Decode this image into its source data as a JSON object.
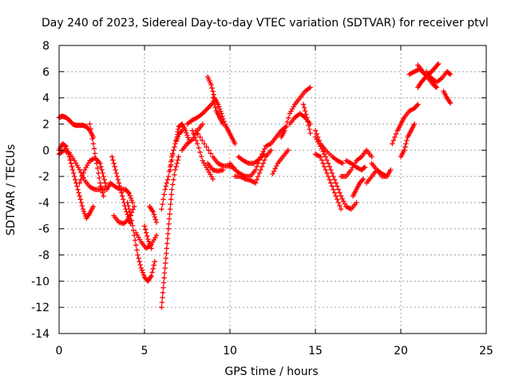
{
  "chart_data": {
    "type": "scatter",
    "title": "Day 240 of 2023, Sidereal Day-to-day VTEC variation (SDTVAR) for receiver ptvl",
    "xlabel": "GPS time / hours",
    "ylabel": "SDTVAR / TECUs",
    "xlim": [
      0,
      25
    ],
    "ylim": [
      -14,
      8
    ],
    "x_ticks": [
      0,
      5,
      10,
      15,
      20,
      25
    ],
    "y_ticks": [
      -14,
      -12,
      -10,
      -8,
      -6,
      -4,
      -2,
      0,
      2,
      4,
      6,
      8
    ],
    "grid": true,
    "marker": "plus",
    "color": "#ff0000",
    "series": [
      {
        "x": [
          0.0,
          0.2,
          0.4,
          0.6,
          0.8,
          1.0,
          1.2,
          1.4,
          1.6,
          1.8,
          2.0
        ],
        "y": [
          2.5,
          2.6,
          2.5,
          2.3,
          2.0,
          1.9,
          1.9,
          1.9,
          1.8,
          1.5,
          1.0
        ]
      },
      {
        "x": [
          1.8,
          2.0,
          2.2,
          2.4,
          2.6
        ],
        "y": [
          2.0,
          0.5,
          -1.0,
          -2.5,
          -3.5
        ]
      },
      {
        "x": [
          0.0,
          0.2,
          0.4,
          0.6,
          0.8,
          1.0,
          1.2,
          1.4,
          1.6,
          1.8,
          2.0
        ],
        "y": [
          0.0,
          0.5,
          0.3,
          -0.5,
          -1.5,
          -2.5,
          -3.5,
          -4.5,
          -5.2,
          -4.8,
          -4.3
        ]
      },
      {
        "x": [
          0.0,
          0.3,
          0.6,
          0.9,
          1.2,
          1.5,
          1.8,
          2.1,
          2.4,
          2.7
        ],
        "y": [
          -0.3,
          0.0,
          -0.2,
          -0.8,
          -1.5,
          -2.3,
          -2.8,
          -3.0,
          -3.0,
          -3.0
        ]
      },
      {
        "x": [
          1.2,
          1.5,
          1.8,
          2.1,
          2.4,
          2.6,
          2.8
        ],
        "y": [
          -2.5,
          -1.5,
          -0.8,
          -0.6,
          -1.0,
          -2.0,
          -3.0
        ]
      },
      {
        "x": [
          2.8,
          3.0,
          3.3,
          3.6,
          3.9,
          4.1,
          4.3
        ],
        "y": [
          -3.0,
          -2.5,
          -2.8,
          -3.0,
          -3.0,
          -3.3,
          -4.0
        ]
      },
      {
        "x": [
          3.1,
          3.3,
          3.5,
          3.7,
          3.9,
          4.1,
          4.2
        ],
        "y": [
          -0.5,
          -1.5,
          -2.5,
          -3.5,
          -4.5,
          -5.3,
          -5.6
        ]
      },
      {
        "x": [
          3.2,
          3.5,
          3.8,
          4.1,
          4.4
        ],
        "y": [
          -5.0,
          -5.5,
          -5.6,
          -5.2,
          -4.3
        ]
      },
      {
        "x": [
          4.0,
          4.2,
          4.4,
          4.6,
          4.8,
          5.0,
          5.2,
          5.4,
          5.6
        ],
        "y": [
          -4.0,
          -5.0,
          -6.5,
          -8.0,
          -9.0,
          -9.7,
          -10.0,
          -9.6,
          -8.5
        ]
      },
      {
        "x": [
          4.5,
          4.8,
          5.1,
          5.4,
          5.7
        ],
        "y": [
          -6.3,
          -7.0,
          -7.5,
          -7.2,
          -6.5
        ]
      },
      {
        "x": [
          5.3,
          5.5,
          5.7
        ],
        "y": [
          -4.3,
          -4.7,
          -5.5
        ]
      },
      {
        "x": [
          5.0,
          5.2,
          5.4
        ],
        "y": [
          -5.8,
          -6.8,
          -7.5
        ]
      },
      {
        "x": [
          6.0,
          6.1,
          6.2,
          6.3,
          6.4,
          6.5,
          6.6,
          6.8,
          7.0
        ],
        "y": [
          -12.0,
          -10.5,
          -9.0,
          -7.5,
          -6.0,
          -4.5,
          -3.0,
          -1.5,
          -0.5
        ]
      },
      {
        "x": [
          6.0,
          6.2,
          6.4,
          6.6,
          6.8,
          7.0,
          7.2
        ],
        "y": [
          -4.5,
          -3.0,
          -2.0,
          -0.5,
          0.5,
          1.2,
          1.5
        ]
      },
      {
        "x": [
          6.5,
          6.7,
          6.9,
          7.0,
          7.2,
          7.4,
          7.6
        ],
        "y": [
          -1.5,
          0.0,
          1.0,
          1.8,
          2.0,
          1.5,
          0.8
        ]
      },
      {
        "x": [
          7.2,
          7.5,
          7.8,
          8.1,
          8.4
        ],
        "y": [
          0.0,
          0.5,
          0.8,
          1.5,
          2.0
        ]
      },
      {
        "x": [
          7.5,
          7.8,
          8.1,
          8.4,
          8.7,
          9.0
        ],
        "y": [
          2.0,
          2.3,
          2.5,
          2.8,
          3.2,
          3.6
        ]
      },
      {
        "x": [
          7.8,
          8.1,
          8.4,
          8.7,
          9.0
        ],
        "y": [
          1.5,
          0.5,
          -0.8,
          -1.5,
          -2.2
        ]
      },
      {
        "x": [
          8.7,
          8.9,
          9.1,
          9.3,
          9.5,
          9.7,
          9.9,
          10.1,
          10.3
        ],
        "y": [
          5.6,
          5.0,
          4.0,
          3.5,
          2.8,
          2.0,
          1.5,
          1.0,
          0.5
        ]
      },
      {
        "x": [
          8.0,
          8.5,
          9.0,
          9.3,
          9.6,
          9.9,
          10.2
        ],
        "y": [
          1.5,
          0.5,
          -0.5,
          -1.0,
          -1.2,
          -1.2,
          -1.3
        ]
      },
      {
        "x": [
          8.7,
          9.0,
          9.3,
          9.6
        ],
        "y": [
          -1.0,
          -1.5,
          -1.6,
          -1.5
        ]
      },
      {
        "x": [
          9.0,
          9.2,
          9.4,
          9.6
        ],
        "y": [
          4.0,
          3.0,
          2.5,
          2.0
        ]
      },
      {
        "x": [
          10.0,
          10.3,
          10.6,
          10.9,
          11.2,
          11.5,
          11.8
        ],
        "y": [
          -1.0,
          -1.5,
          -1.8,
          -2.0,
          -2.0,
          -1.5,
          -0.5
        ]
      },
      {
        "x": [
          10.3,
          10.6,
          10.9,
          11.2,
          11.5,
          11.8,
          12.1,
          12.4
        ],
        "y": [
          -2.0,
          -2.0,
          -2.2,
          -2.3,
          -2.5,
          -1.5,
          -0.5,
          0.0
        ]
      },
      {
        "x": [
          10.5,
          10.8,
          11.1,
          11.4,
          11.7,
          12.0
        ],
        "y": [
          -0.5,
          -0.8,
          -1.0,
          -1.0,
          -0.7,
          -0.3
        ]
      },
      {
        "x": [
          11.8,
          12.1,
          12.4,
          12.7,
          13.0,
          13.3
        ],
        "y": [
          -0.5,
          0.3,
          0.5,
          1.0,
          1.5,
          1.8
        ]
      },
      {
        "x": [
          12.5,
          12.8,
          13.1,
          13.4
        ],
        "y": [
          -1.8,
          -1.0,
          -0.5,
          0.0
        ]
      },
      {
        "x": [
          13.0,
          13.2,
          13.5,
          13.8,
          14.1,
          14.4,
          14.7
        ],
        "y": [
          1.0,
          1.5,
          2.8,
          3.5,
          4.0,
          4.5,
          4.8
        ]
      },
      {
        "x": [
          13.5,
          13.8,
          14.1,
          14.4,
          14.7
        ],
        "y": [
          2.0,
          2.5,
          2.8,
          2.5,
          2.0
        ]
      },
      {
        "x": [
          14.3,
          14.5,
          14.7
        ],
        "y": [
          3.5,
          2.5,
          1.3
        ]
      },
      {
        "x": [
          15.0,
          15.3,
          15.6,
          15.9,
          16.2,
          16.5,
          16.8,
          17.1,
          17.4
        ],
        "y": [
          1.0,
          0.3,
          -0.5,
          -1.5,
          -2.5,
          -3.5,
          -4.3,
          -4.5,
          -4.0
        ]
      },
      {
        "x": [
          15.0,
          15.3,
          15.6,
          16.0,
          16.3,
          16.6
        ],
        "y": [
          1.5,
          0.5,
          0.0,
          -0.5,
          -0.8,
          -1.0
        ]
      },
      {
        "x": [
          15.0,
          15.3,
          15.6,
          15.9,
          16.2,
          16.5
        ],
        "y": [
          -0.3,
          -0.5,
          -1.5,
          -2.5,
          -3.5,
          -4.5
        ]
      },
      {
        "x": [
          16.8,
          17.1,
          17.4,
          17.7,
          17.9
        ],
        "y": [
          -0.8,
          -1.0,
          -1.3,
          -1.5,
          -1.3
        ]
      },
      {
        "x": [
          16.5,
          16.8,
          17.1,
          17.4,
          17.7,
          18.0,
          18.3
        ],
        "y": [
          -2.0,
          -2.0,
          -1.5,
          -0.8,
          -0.5,
          0.0,
          -0.5
        ]
      },
      {
        "x": [
          17.2,
          17.4,
          17.6,
          17.8
        ],
        "y": [
          -3.5,
          -3.0,
          -2.5,
          -2.2
        ]
      },
      {
        "x": [
          18.3,
          18.6,
          18.9,
          19.2,
          19.4
        ],
        "y": [
          -1.0,
          -1.5,
          -2.0,
          -2.0,
          -1.5
        ]
      },
      {
        "x": [
          18.0,
          18.3,
          18.6,
          18.9,
          19.2
        ],
        "y": [
          -2.5,
          -2.0,
          -1.5,
          -1.8,
          -2.0
        ]
      },
      {
        "x": [
          19.5,
          19.8,
          20.0,
          20.2,
          20.5,
          20.8,
          21.0
        ],
        "y": [
          0.5,
          1.5,
          2.0,
          2.5,
          3.0,
          3.2,
          3.5
        ]
      },
      {
        "x": [
          20.0,
          20.2,
          20.4,
          20.6,
          20.8
        ],
        "y": [
          -0.5,
          0.0,
          1.0,
          1.5,
          2.0
        ]
      },
      {
        "x": [
          21.0,
          21.2,
          21.4,
          21.6,
          21.8,
          22.0,
          22.2
        ],
        "y": [
          4.8,
          5.2,
          5.5,
          5.8,
          6.0,
          6.3,
          6.6
        ]
      },
      {
        "x": [
          20.5,
          20.8,
          21.1,
          21.4,
          21.7,
          22.0
        ],
        "y": [
          5.8,
          6.0,
          6.2,
          5.8,
          5.5,
          5.2
        ]
      },
      {
        "x": [
          21.5,
          21.8,
          22.1,
          22.4,
          22.7,
          22.9
        ],
        "y": [
          6.0,
          5.5,
          5.2,
          5.5,
          6.0,
          5.8
        ]
      },
      {
        "x": [
          22.5,
          22.7,
          22.9
        ],
        "y": [
          4.5,
          4.0,
          3.6
        ]
      },
      {
        "x": [
          21.0,
          21.3,
          21.6,
          21.9,
          22.1
        ],
        "y": [
          6.5,
          6.0,
          5.5,
          5.0,
          4.8
        ]
      }
    ]
  }
}
